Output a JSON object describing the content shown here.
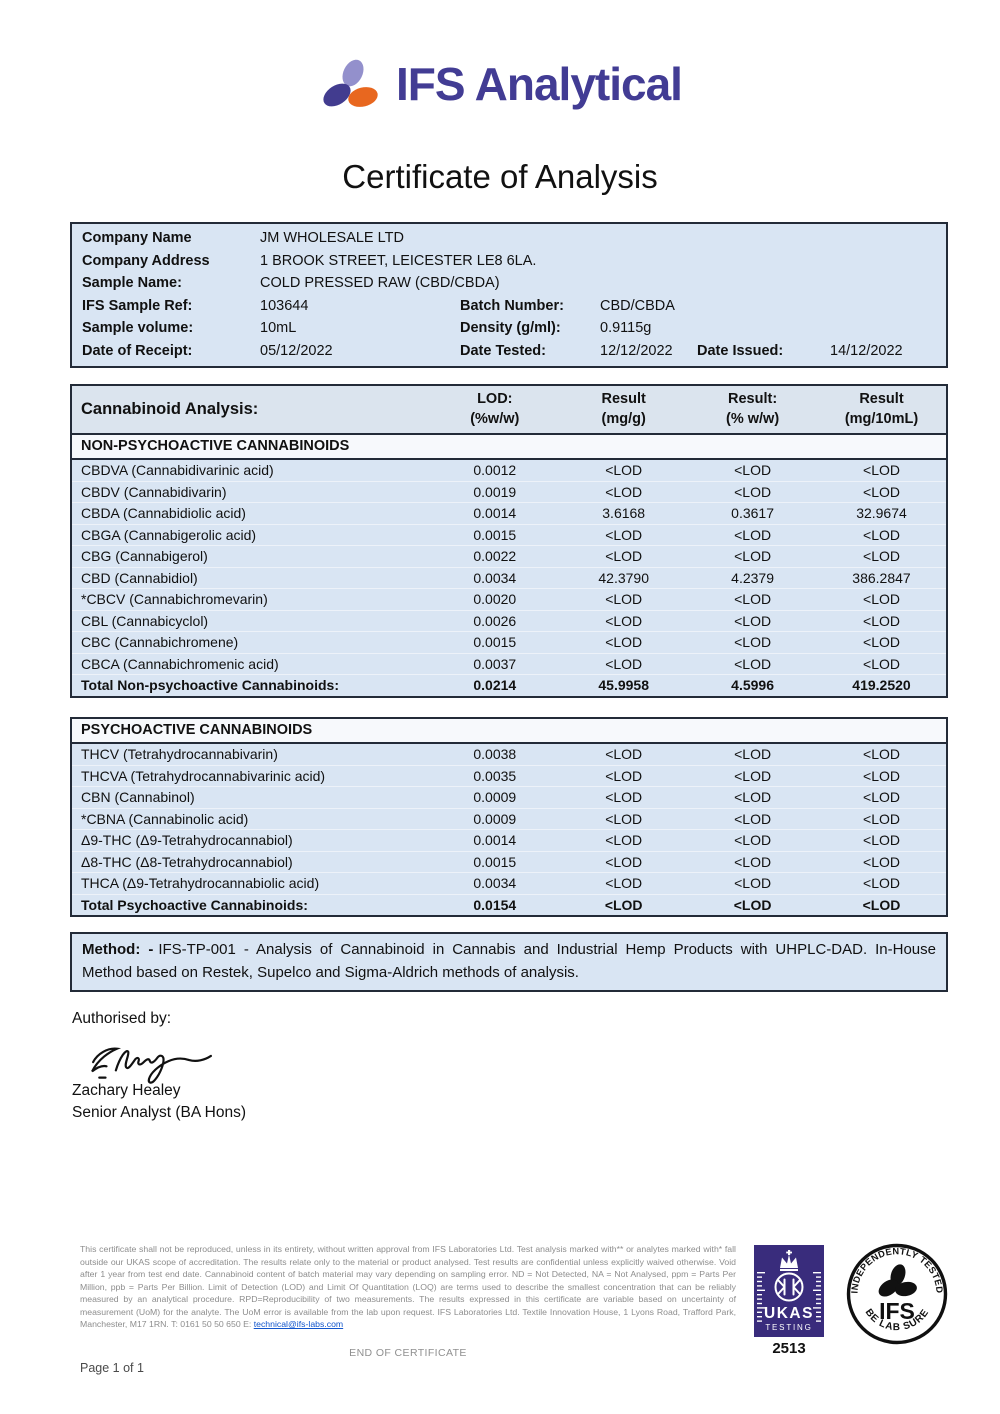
{
  "brand": {
    "name": "IFS Analytical",
    "colors": {
      "indigo": "#423c94",
      "lavender": "#9390cc",
      "orange": "#e8671f"
    }
  },
  "title": "Certificate of Analysis",
  "company_info": {
    "rows": [
      {
        "cells": [
          {
            "role": "label",
            "col": 1,
            "text": "Company Name"
          },
          {
            "role": "value",
            "col": 1,
            "text": "JM WHOLESALE LTD"
          }
        ]
      },
      {
        "cells": [
          {
            "role": "label",
            "col": 1,
            "text": "Company Address"
          },
          {
            "role": "value",
            "col": 1,
            "text": "1 BROOK STREET, LEICESTER LE8 6LA."
          }
        ]
      },
      {
        "cells": [
          {
            "role": "label",
            "col": 1,
            "text": "Sample Name:"
          },
          {
            "role": "value",
            "col": 1,
            "text": "COLD PRESSED RAW (CBD/CBDA)"
          }
        ]
      },
      {
        "cells": [
          {
            "role": "label",
            "col": 1,
            "text": "IFS Sample Ref:"
          },
          {
            "role": "value",
            "col": 1,
            "text": "103644"
          },
          {
            "role": "label",
            "col": 2,
            "text": "Batch Number:"
          },
          {
            "role": "value",
            "col": 2,
            "text": "CBD/CBDA"
          }
        ]
      },
      {
        "cells": [
          {
            "role": "label",
            "col": 1,
            "text": "Sample volume:"
          },
          {
            "role": "value",
            "col": 1,
            "text": "10mL"
          },
          {
            "role": "label",
            "col": 2,
            "text": "Density (g/ml):"
          },
          {
            "role": "value",
            "col": 2,
            "text": "0.9115g"
          }
        ]
      },
      {
        "cells": [
          {
            "role": "label",
            "col": 1,
            "text": "Date of Receipt:"
          },
          {
            "role": "value",
            "col": 1,
            "text": "05/12/2022"
          },
          {
            "role": "label",
            "col": 2,
            "text": "Date Tested:"
          },
          {
            "role": "value",
            "col": 2,
            "text": "12/12/2022"
          },
          {
            "role": "label",
            "col": 3,
            "text": "Date Issued:"
          },
          {
            "role": "value",
            "col": 3,
            "text": "14/12/2022"
          }
        ]
      }
    ]
  },
  "analysis": {
    "header": {
      "title": "Cannabinoid Analysis:",
      "columns": [
        [
          "LOD:",
          "(%w/w)"
        ],
        [
          "Result",
          "(mg/g)"
        ],
        [
          "Result:",
          "(% w/w)"
        ],
        [
          "Result",
          "(mg/10mL)"
        ]
      ]
    },
    "sections": [
      {
        "name": "NON-PSYCHOACTIVE CANNABINOIDS",
        "rows": [
          [
            "CBDVA (Cannabidivarinic acid)",
            "0.0012",
            "<LOD",
            "<LOD",
            "<LOD"
          ],
          [
            "CBDV (Cannabidivarin)",
            "0.0019",
            "<LOD",
            "<LOD",
            "<LOD"
          ],
          [
            "CBDA (Cannabidiolic acid)",
            "0.0014",
            "3.6168",
            "0.3617",
            "32.9674"
          ],
          [
            "CBGA (Cannabigerolic acid)",
            "0.0015",
            "<LOD",
            "<LOD",
            "<LOD"
          ],
          [
            "CBG (Cannabigerol)",
            "0.0022",
            "<LOD",
            "<LOD",
            "<LOD"
          ],
          [
            "CBD (Cannabidiol)",
            "0.0034",
            "42.3790",
            "4.2379",
            "386.2847"
          ],
          [
            "*CBCV (Cannabichromevarin)",
            "0.0020",
            "<LOD",
            "<LOD",
            "<LOD"
          ],
          [
            "CBL (Cannabicyclol)",
            "0.0026",
            "<LOD",
            "<LOD",
            "<LOD"
          ],
          [
            "CBC (Cannabichromene)",
            "0.0015",
            "<LOD",
            "<LOD",
            "<LOD"
          ],
          [
            "CBCA (Cannabichromenic acid)",
            "0.0037",
            "<LOD",
            "<LOD",
            "<LOD"
          ]
        ],
        "total": [
          "Total Non-psychoactive Cannabinoids:",
          "0.0214",
          "45.9958",
          "4.5996",
          "419.2520"
        ]
      },
      {
        "name": "PSYCHOACTIVE CANNABINOIDS",
        "rows": [
          [
            "THCV (Tetrahydrocannabivarin)",
            "0.0038",
            "<LOD",
            "<LOD",
            "<LOD"
          ],
          [
            "THCVA (Tetrahydrocannabivarinic acid)",
            "0.0035",
            "<LOD",
            "<LOD",
            "<LOD"
          ],
          [
            "CBN (Cannabinol)",
            "0.0009",
            "<LOD",
            "<LOD",
            "<LOD"
          ],
          [
            "*CBNA (Cannabinolic acid)",
            "0.0009",
            "<LOD",
            "<LOD",
            "<LOD"
          ],
          [
            "Δ9-THC (Δ9-Tetrahydrocannabiol)",
            "0.0014",
            "<LOD",
            "<LOD",
            "<LOD"
          ],
          [
            "Δ8-THC (Δ8-Tetrahydrocannabiol)",
            "0.0015",
            "<LOD",
            "<LOD",
            "<LOD"
          ],
          [
            "THCA (Δ9-Tetrahydrocannabiolic acid)",
            "0.0034",
            "<LOD",
            "<LOD",
            "<LOD"
          ]
        ],
        "total": [
          "Total Psychoactive Cannabinoids:",
          "0.0154",
          "<LOD",
          "<LOD",
          "<LOD"
        ]
      }
    ]
  },
  "method": {
    "label": "Method: -",
    "text": "IFS-TP-001 - Analysis of Cannabinoid in Cannabis and Industrial Hemp Products with UHPLC-DAD. In-House Method based on Restek, Supelco and Sigma-Aldrich methods of analysis."
  },
  "authorisation": {
    "label": "Authorised by:",
    "signature_icon": "handwritten-signature",
    "name": "Zachary Healey",
    "title": "Senior Analyst (BA Hons)"
  },
  "footer": {
    "disclaimer": "This certificate shall not be reproduced, unless in its entirety, without written approval from IFS Laboratories Ltd. Test analysis marked with** or analytes marked with* fall outside our UKAS scope of accreditation.  The results relate only to the material or product analysed. Test results are confidential unless explicitly waived otherwise. Void after 1 year from test end date. Cannabinoid content of batch material may vary depending on sampling error. ND = Not Detected, NA = Not Analysed, ppm = Parts Per Million, ppb = Parts Per Billion. Limit of Detection (LOD) and Limit Of Quantitation (LOQ) are terms used to describe the smallest concentration that can be reliably measured by an analytical procedure. RPD=Reproducibility of two measurements. The results expressed in this certificate are variable based on uncertainty of measurement (UoM) for the analyte. The UoM error is available from the lab upon request. IFS Laboratories Ltd. Textile Innovation House, 1 Lyons Road, Trafford Park, Manchester, M17 1RN. T: 0161 50 50 650 E: ",
    "email": "technical@ifs-labs.com",
    "end_text": "END OF CERTIFICATE",
    "page_number": "Page 1 of 1",
    "ukas": {
      "name": "UKAS",
      "sub": "TESTING",
      "number": "2513",
      "color": "#392c7c"
    },
    "badge": {
      "top": "INDEPENDENTLY TESTED",
      "center": "IFS",
      "bottom": "BE LAB SURE"
    }
  }
}
